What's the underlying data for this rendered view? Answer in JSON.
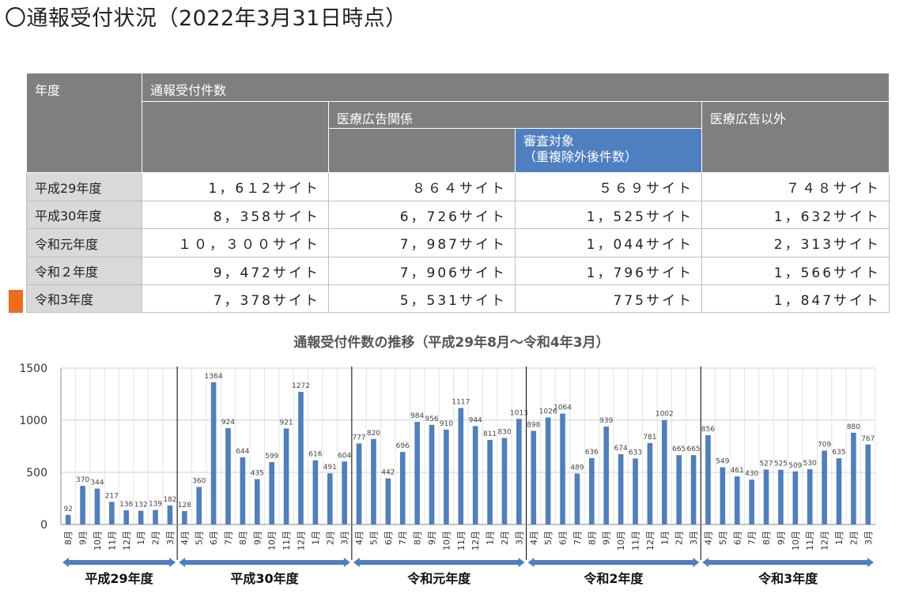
{
  "page": {
    "title": "〇通報受付状況（2022年3月31日時点）"
  },
  "table": {
    "header": {
      "year": "年度",
      "total": "通報受付件数",
      "medical_ad": "医療広告関係",
      "review_target_line1": "審査対象",
      "review_target_line2": "（重複除外後件数）",
      "other": "医療広告以外"
    },
    "rows": [
      {
        "year": "平成29年度",
        "total": "1，6１2サイト",
        "medical": "８６４サイト",
        "review": "５６９サイト",
        "other": "７４８サイト"
      },
      {
        "year": "平成30年度",
        "total": "8，358サイト",
        "medical": "6，726サイト",
        "review": "1，525サイト",
        "other": "1，632サイト"
      },
      {
        "year": "令和元年度",
        "total": "１０，３００サイト",
        "medical": "7，987サイト",
        "review": "1，044サイト",
        "other": "2，313サイト"
      },
      {
        "year": "令和２年度",
        "total": "9，472サイト",
        "medical": "7，906サイト",
        "review": "1，796サイト",
        "other": "1，566サイト"
      },
      {
        "year": "令和3年度",
        "total": "7，378サイト",
        "medical": "5，531サイト",
        "review": "775サイト",
        "other": "1，847サイト"
      }
    ]
  },
  "colors": {
    "header_gray": "#7f7f7f",
    "header_blue": "#4e7fc0",
    "bar": "#4e7fc0",
    "arrow": "#4e7fc0",
    "marker": "#f06a1e"
  },
  "chart_data": {
    "type": "bar",
    "title": "通報受付件数の推移（平成29年8月～令和4年3月）",
    "ylim": [
      0,
      1500
    ],
    "yticks": [
      "0",
      "500",
      "1000",
      "1500"
    ],
    "grid": true,
    "categories": [
      "8月",
      "9月",
      "10月",
      "11月",
      "12月",
      "1月",
      "2月",
      "3月",
      "4月",
      "5月",
      "6月",
      "7月",
      "8月",
      "9月",
      "10月",
      "11月",
      "12月",
      "1月",
      "2月",
      "3月",
      "4月",
      "5月",
      "6月",
      "7月",
      "8月",
      "9月",
      "10月",
      "11月",
      "12月",
      "1月",
      "2月",
      "3月",
      "4月",
      "5月",
      "6月",
      "7月",
      "8月",
      "9月",
      "10月",
      "11月",
      "12月",
      "1月",
      "2月",
      "3月",
      "4月",
      "5月",
      "6月",
      "7月",
      "8月",
      "9月",
      "10月",
      "11月",
      "12月",
      "1月",
      "2月",
      "3月"
    ],
    "values": [
      92,
      370,
      344,
      217,
      136,
      132,
      139,
      182,
      128,
      360,
      1364,
      924,
      644,
      435,
      599,
      921,
      1272,
      616,
      491,
      604,
      777,
      820,
      442,
      696,
      984,
      956,
      910,
      1117,
      944,
      811,
      830,
      1013,
      898,
      1026,
      1064,
      489,
      636,
      939,
      674,
      633,
      781,
      1002,
      665,
      665,
      856,
      549,
      461,
      430,
      527,
      525,
      509,
      530,
      709,
      635,
      880,
      767
    ],
    "groups": [
      {
        "label": "平成29年度",
        "start": 0,
        "end": 7
      },
      {
        "label": "平成30年度",
        "start": 8,
        "end": 19
      },
      {
        "label": "令和元年度",
        "start": 20,
        "end": 31
      },
      {
        "label": "令和2年度",
        "start": 32,
        "end": 43
      },
      {
        "label": "令和3年度",
        "start": 44,
        "end": 55
      }
    ]
  }
}
